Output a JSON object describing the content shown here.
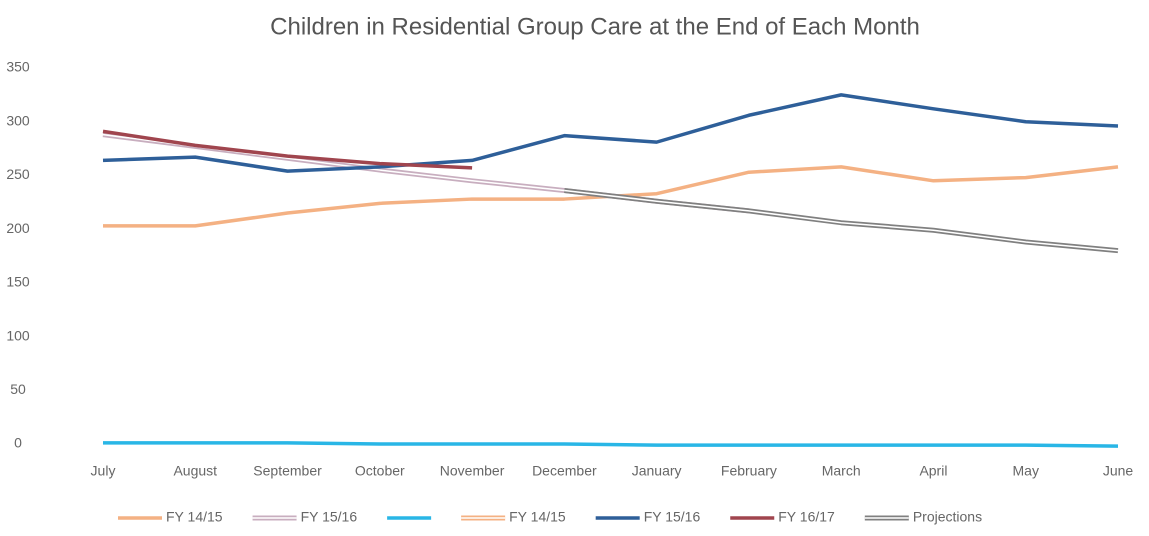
{
  "chart_data": {
    "type": "line",
    "title": "Children in Residential Group Care at the End of Each Month",
    "categories": [
      "July",
      "August",
      "September",
      "October",
      "November",
      "December",
      "January",
      "February",
      "March",
      "April",
      "May",
      "June"
    ],
    "ylim": [
      0,
      350
    ],
    "yticks": [
      0,
      50,
      100,
      150,
      200,
      250,
      300,
      350
    ],
    "grid": false,
    "legend": "bottom",
    "series": [
      {
        "name": "FY 14/15",
        "color": "#f4b183",
        "double": false,
        "values": [
          203,
          203,
          215,
          224,
          228,
          228,
          233,
          253,
          258,
          245,
          248,
          258
        ]
      },
      {
        "name": "FY 15/16",
        "color": "#c8aebf",
        "double": true,
        "values": [
          288,
          277,
          266,
          255,
          245,
          236,
          226,
          217,
          null,
          null,
          null,
          null
        ]
      },
      {
        "color": "#29b6e6",
        "double": false,
        "values": [
          1,
          1,
          1,
          0,
          0,
          0,
          -1,
          -1,
          -1,
          -1,
          -1,
          -2
        ]
      },
      {
        "name": "FY 14/15",
        "color": "#f4b183",
        "double": true,
        "values": [
          null,
          null,
          null,
          null,
          null,
          null,
          null,
          null,
          null,
          null,
          null,
          null
        ]
      },
      {
        "name": "FY 15/16",
        "color": "#2e5f99",
        "double": false,
        "values": [
          264,
          267,
          254,
          258,
          264,
          287,
          281,
          306,
          325,
          312,
          300,
          296
        ]
      },
      {
        "name": "FY 16/17",
        "color": "#a0454e",
        "double": false,
        "values": [
          291,
          278,
          268,
          261,
          257,
          null,
          null,
          null,
          null,
          null,
          null,
          null
        ]
      },
      {
        "name": "Projections",
        "color": "#808080",
        "double": true,
        "values": [
          null,
          null,
          null,
          null,
          null,
          236,
          226,
          217,
          206,
          199,
          188,
          180
        ]
      }
    ]
  }
}
